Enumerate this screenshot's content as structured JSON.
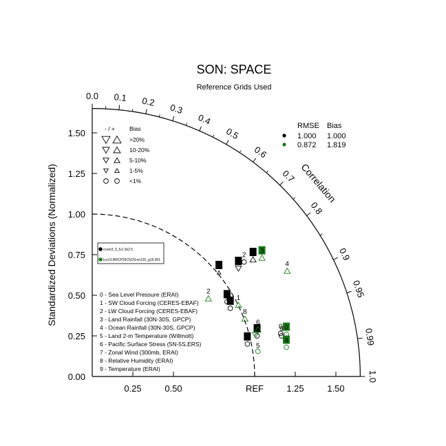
{
  "chart_data": {
    "type": "taylor-diagram",
    "title": "SON: SPACE",
    "subtitle": "Reference Grids Used",
    "ylabel": "Standardized Deviations (Normalized)",
    "correlation_label": "Correlation",
    "ref_label": "REF",
    "radius_max": 1.65,
    "x_ticks": [
      "0.25",
      "0.50",
      "REF",
      "1.25",
      "1.50"
    ],
    "x_tick_values": [
      0.25,
      0.5,
      1.0,
      1.25,
      1.5
    ],
    "y_ticks": [
      "0.00",
      "0.25",
      "0.50",
      "0.75",
      "1.00",
      "1.25",
      "1.50"
    ],
    "y_tick_values": [
      0.0,
      0.25,
      0.5,
      0.75,
      1.0,
      1.25,
      1.5
    ],
    "corr_labels": [
      "0.0",
      "0.1",
      "0.2",
      "0.3",
      "0.4",
      "0.5",
      "0.6",
      "0.7",
      "0.8",
      "0.9",
      "0.95",
      "0.99",
      "1.0"
    ],
    "corr_values": [
      0.0,
      0.1,
      0.2,
      0.3,
      0.4,
      0.5,
      0.6,
      0.7,
      0.8,
      0.9,
      0.95,
      0.99,
      1.0
    ],
    "bias_legend": {
      "header_sign": "- / +",
      "header_bias": "Bias",
      "rows": [
        ">20%",
        "10-20%",
        "5-10%",
        "1-5%",
        "<1%"
      ]
    },
    "summary_table": {
      "headers": [
        "RMSE",
        "Bias"
      ],
      "rows": [
        {
          "rmse": "1.000",
          "bias": "1.000",
          "color": "#000000"
        },
        {
          "rmse": "0.872",
          "bias": "1.819",
          "color": "#1a7a1a"
        }
      ]
    },
    "cases": [
      {
        "name": "ccsm3_5_fv1.9x2.5",
        "color": "#000000"
      },
      {
        "name": "b.e13.BRCP26C5CN.ne120_g16.001",
        "color": "#1a7a1a"
      }
    ],
    "variables": [
      "0 - Sea Level Pressure (ERAI)",
      "1 - SW Cloud Forcing (CERES-EBAF)",
      "2 - LW Cloud Forcing (CERES-EBAF)",
      "3 - Land Rainfall (30N-30S, GPCP)",
      "4 - Ocean Rainfall (30N-30S, GPCP)",
      "5 - Land 2-m Temperature (Willmott)",
      "6 - Pacific Surface Stress (5N-5S,ERS)",
      "7 - Zonal Wind (300mb, ERAI)",
      "8 - Relative Humidity (ERAI)",
      "9 - Temperature (ERAI)"
    ],
    "points": [
      {
        "case": 0,
        "label": "0",
        "x": 1.16,
        "y": 0.265,
        "marker": "circle"
      },
      {
        "case": 0,
        "label": "1",
        "x": 0.78,
        "y": 0.64,
        "marker": "up-small"
      },
      {
        "case": 0,
        "label": "2",
        "x": 0.935,
        "y": 0.705,
        "marker": "circle"
      },
      {
        "case": 0,
        "label": "3",
        "x": 0.9,
        "y": 0.665,
        "marker": "down"
      },
      {
        "case": 0,
        "label": "4",
        "x": 0.99,
        "y": 0.72,
        "marker": "up"
      },
      {
        "case": 0,
        "label": "5",
        "x": 0.955,
        "y": 0.2,
        "marker": "circle"
      },
      {
        "case": 0,
        "label": "6",
        "x": 0.85,
        "y": 0.42,
        "marker": "circle"
      },
      {
        "case": 0,
        "label": "7",
        "x": 1.015,
        "y": 0.25,
        "marker": "circle"
      },
      {
        "case": 0,
        "label": "8",
        "x": 0.83,
        "y": 0.46,
        "marker": "circle"
      },
      {
        "case": 0,
        "label": "9",
        "x": 1.165,
        "y": 0.25,
        "marker": "circle"
      },
      {
        "case": 1,
        "label": "0",
        "x": 1.195,
        "y": 0.26,
        "marker": "circle"
      },
      {
        "case": 1,
        "label": "1",
        "x": 0.9,
        "y": 0.44,
        "marker": "up"
      },
      {
        "case": 1,
        "label": "2",
        "x": 0.715,
        "y": 0.48,
        "marker": "up"
      },
      {
        "case": 1,
        "label": "3",
        "x": 1.045,
        "y": 0.73,
        "marker": "up"
      },
      {
        "case": 1,
        "label": "4",
        "x": 1.2,
        "y": 0.65,
        "marker": "up"
      },
      {
        "case": 1,
        "label": "5",
        "x": 1.02,
        "y": 0.155,
        "marker": "circle"
      },
      {
        "case": 1,
        "label": "6",
        "x": 1.02,
        "y": 0.29,
        "marker": "up"
      },
      {
        "case": 1,
        "label": "7",
        "x": 1.005,
        "y": 0.255,
        "marker": "down"
      },
      {
        "case": 1,
        "label": "8",
        "x": 0.94,
        "y": 0.355,
        "marker": "up"
      },
      {
        "case": 1,
        "label": "9",
        "x": 1.195,
        "y": 0.18,
        "marker": "circle"
      }
    ]
  }
}
